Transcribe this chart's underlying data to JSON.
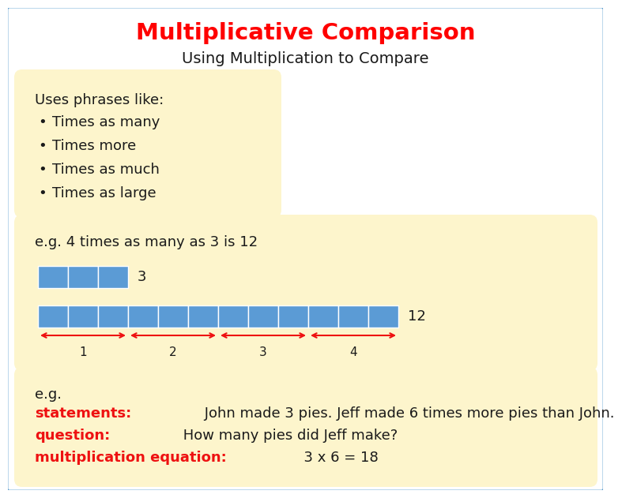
{
  "title": "Multiplicative Comparison",
  "title_color": "#FF0000",
  "subtitle": "Using Multiplication to Compare",
  "subtitle_color": "#1a1a1a",
  "bg_color": "#FFFFFF",
  "bg_border_color": "#5599CC",
  "box_bg": "#FDF5CC",
  "box1_text_header": "Uses phrases like:",
  "box1_bullets": [
    "Times as many",
    "Times more",
    "Times as much",
    "Times as large"
  ],
  "box2_example_text": "e.g. 4 times as many as 3 is 12",
  "small_bar_cells": 3,
  "large_bar_cells": 12,
  "bar_color": "#5B9BD5",
  "bar_border_color": "#FFFFFF",
  "arrow_color": "#EE1111",
  "arrow_labels": [
    "1",
    "2",
    "3",
    "4"
  ],
  "small_bar_label": "3",
  "large_bar_label": "12",
  "box3_eg": "e.g.",
  "box3_lines": [
    {
      "red": "statements:",
      "black": " John made 3 pies. Jeff made 6 times more pies than John."
    },
    {
      "red": "question:",
      "black": " How many pies did Jeff make?"
    },
    {
      "red": "multiplication equation:",
      "black": "  3 x 6 = 18"
    }
  ],
  "red_color": "#EE1111",
  "black_color": "#1a1a1a",
  "font_size_title": 21,
  "font_size_subtitle": 14,
  "font_size_body": 13
}
